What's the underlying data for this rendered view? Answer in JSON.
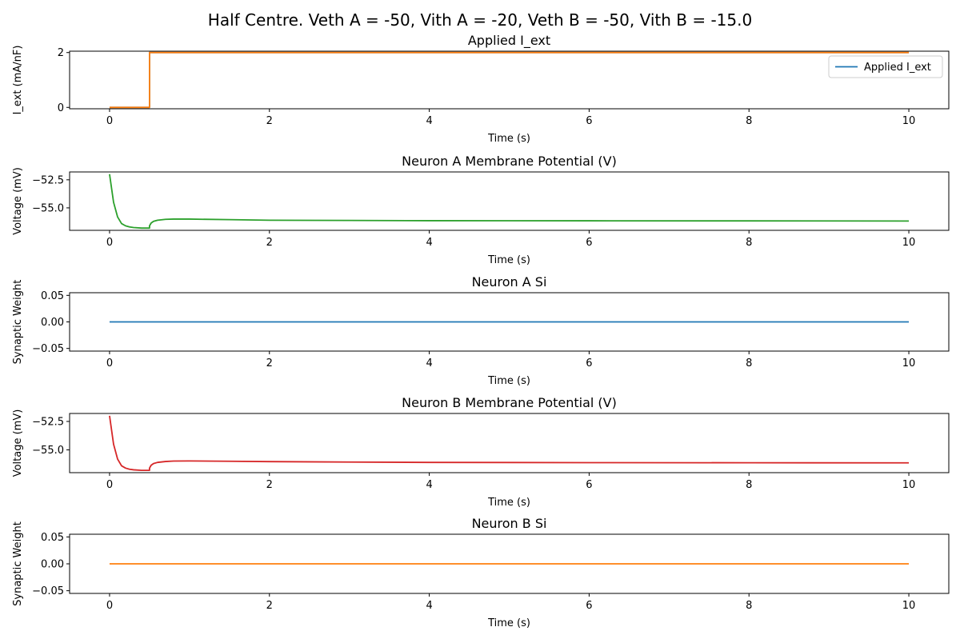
{
  "figure": {
    "suptitle": "Half Centre. Veth A = -50, Vith A = -20, Veth B = -50, Vith B = -15.0"
  },
  "chart_data": [
    {
      "type": "line",
      "title": "Applied I_ext",
      "xlabel": "Time (s)",
      "ylabel": "I_ext (mA/nF)",
      "xlim": [
        -0.5,
        10.5
      ],
      "ylim": [
        -0.05,
        2.05
      ],
      "xticks": [
        0,
        2,
        4,
        6,
        8,
        10
      ],
      "yticks": [
        0,
        2
      ],
      "ytick_labels": [
        "0",
        "2"
      ],
      "legend": {
        "placement": "upper-right",
        "entries": [
          "Applied I_ext"
        ]
      },
      "series": [
        {
          "name": "Applied I_ext",
          "color": "#1f77b4",
          "x": [
            0,
            0.5,
            0.5,
            10
          ],
          "y": [
            0,
            0,
            2,
            2
          ]
        },
        {
          "color": "#ff7f0e",
          "x": [
            0,
            0.5,
            0.5,
            10
          ],
          "y": [
            0,
            0,
            2,
            2
          ]
        }
      ]
    },
    {
      "type": "line",
      "title": "Neuron A Membrane Potential (V)",
      "xlabel": "Time (s)",
      "ylabel": "Voltage (mV)",
      "xlim": [
        -0.5,
        10.5
      ],
      "ylim": [
        -57.0,
        -51.8
      ],
      "xticks": [
        0,
        2,
        4,
        6,
        8,
        10
      ],
      "yticks": [
        -52.5,
        -55.0
      ],
      "ytick_labels": [
        "−52.5",
        "−55.0"
      ],
      "series": [
        {
          "color": "#2ca02c",
          "x": [
            0,
            0.02,
            0.05,
            0.1,
            0.15,
            0.2,
            0.25,
            0.3,
            0.4,
            0.5,
            0.5,
            0.52,
            0.55,
            0.6,
            0.7,
            0.8,
            1.0,
            1.5,
            2.0,
            3.0,
            4.0,
            6.0,
            8.0,
            10.0
          ],
          "y": [
            -52.0,
            -53.0,
            -54.5,
            -55.8,
            -56.4,
            -56.6,
            -56.7,
            -56.75,
            -56.8,
            -56.8,
            -56.6,
            -56.35,
            -56.2,
            -56.1,
            -56.02,
            -56.0,
            -56.0,
            -56.05,
            -56.1,
            -56.12,
            -56.14,
            -56.15,
            -56.16,
            -56.17
          ]
        }
      ]
    },
    {
      "type": "line",
      "title": "Neuron A Si",
      "xlabel": "Time (s)",
      "ylabel": "Synaptic Weight",
      "xlim": [
        -0.5,
        10.5
      ],
      "ylim": [
        -0.055,
        0.055
      ],
      "xticks": [
        0,
        2,
        4,
        6,
        8,
        10
      ],
      "yticks": [
        0.05,
        0.0,
        -0.05
      ],
      "ytick_labels": [
        "0.05",
        "0.00",
        "−0.05"
      ],
      "series": [
        {
          "color": "#1f77b4",
          "x": [
            0,
            10
          ],
          "y": [
            0,
            0
          ]
        }
      ]
    },
    {
      "type": "line",
      "title": "Neuron B Membrane Potential (V)",
      "xlabel": "Time (s)",
      "ylabel": "Voltage (mV)",
      "xlim": [
        -0.5,
        10.5
      ],
      "ylim": [
        -57.0,
        -51.8
      ],
      "xticks": [
        0,
        2,
        4,
        6,
        8,
        10
      ],
      "yticks": [
        -52.5,
        -55.0
      ],
      "ytick_labels": [
        "−52.5",
        "−55.0"
      ],
      "series": [
        {
          "color": "#d62728",
          "x": [
            0,
            0.02,
            0.05,
            0.1,
            0.15,
            0.2,
            0.25,
            0.3,
            0.4,
            0.5,
            0.5,
            0.52,
            0.55,
            0.6,
            0.7,
            0.8,
            1.0,
            1.5,
            2.0,
            3.0,
            4.0,
            6.0,
            8.0,
            10.0
          ],
          "y": [
            -52.0,
            -53.0,
            -54.5,
            -55.8,
            -56.4,
            -56.6,
            -56.7,
            -56.75,
            -56.8,
            -56.8,
            -56.6,
            -56.35,
            -56.2,
            -56.1,
            -56.02,
            -55.98,
            -55.97,
            -56.0,
            -56.03,
            -56.07,
            -56.1,
            -56.12,
            -56.13,
            -56.14
          ]
        }
      ]
    },
    {
      "type": "line",
      "title": "Neuron B Si",
      "xlabel": "Time (s)",
      "ylabel": "Synaptic Weight",
      "xlim": [
        -0.5,
        10.5
      ],
      "ylim": [
        -0.055,
        0.055
      ],
      "xticks": [
        0,
        2,
        4,
        6,
        8,
        10
      ],
      "yticks": [
        0.05,
        0.0,
        -0.05
      ],
      "ytick_labels": [
        "0.05",
        "0.00",
        "−0.05"
      ],
      "series": [
        {
          "color": "#ff7f0e",
          "x": [
            0,
            10
          ],
          "y": [
            0,
            0
          ]
        }
      ]
    }
  ]
}
